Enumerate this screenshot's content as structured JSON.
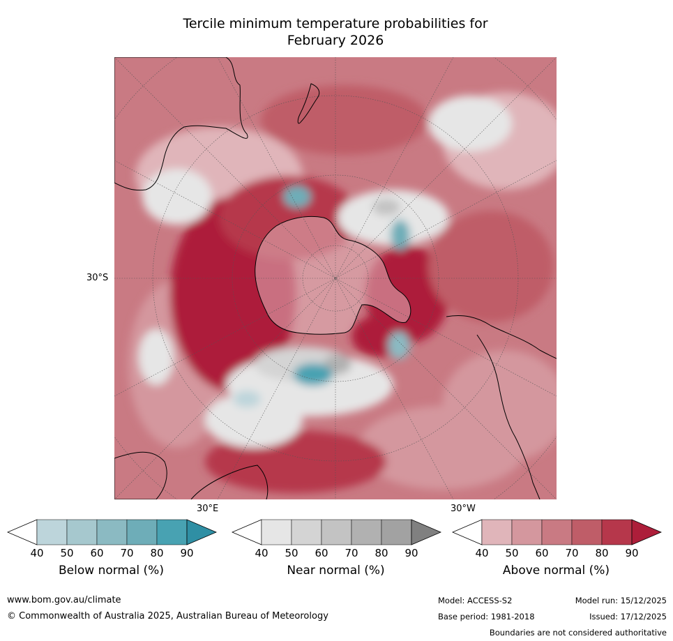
{
  "title": {
    "line1": "Tercile minimum temperature probabilities for",
    "line2": "February 2026"
  },
  "map": {
    "lat_label": "30°S",
    "lon_labels": [
      "30°E",
      "30°W"
    ],
    "palette": {
      "above": [
        "#e0b5ba",
        "#d4979e",
        "#c97a83",
        "#bf5d68",
        "#b6374b",
        "#ad1e3a"
      ],
      "near": [
        "#e6e6e6",
        "#d4d4d4",
        "#c3c3c3",
        "#b1b1b1",
        "#a2a2a2",
        "#808080"
      ],
      "below": [
        "#bdd5db",
        "#a6c8ce",
        "#8bbac2",
        "#6eadb8",
        "#48a2b2",
        "#2f8fa4"
      ]
    }
  },
  "colorbars": [
    {
      "id": "below",
      "title": "Below normal (%)",
      "ticks": [
        "40",
        "50",
        "60",
        "70",
        "80",
        "90"
      ],
      "colors": [
        "#bdd5db",
        "#a6c8ce",
        "#8bbac2",
        "#6eadb8",
        "#48a2b2"
      ],
      "arrow_color": "#2f8fa4"
    },
    {
      "id": "near",
      "title": "Near normal (%)",
      "ticks": [
        "40",
        "50",
        "60",
        "70",
        "80",
        "90"
      ],
      "colors": [
        "#e6e6e6",
        "#d4d4d4",
        "#c3c3c3",
        "#b1b1b1",
        "#a2a2a2"
      ],
      "arrow_color": "#808080"
    },
    {
      "id": "above",
      "title": "Above normal (%)",
      "ticks": [
        "40",
        "50",
        "60",
        "70",
        "80",
        "90"
      ],
      "colors": [
        "#e0b5ba",
        "#d4979e",
        "#c97a83",
        "#bf5d68",
        "#b6374b"
      ],
      "arrow_color": "#ad1e3a"
    }
  ],
  "footer": {
    "website": "www.bom.gov.au/climate",
    "copyright": "© Commonwealth of Australia 2025, Australian Bureau of Meteorology",
    "model": "Model: ACCESS-S2",
    "base_period": "Base period: 1981-2018",
    "model_run": "Model run: 15/12/2025",
    "issued": "Issued: 17/12/2025",
    "disclaimer": "Boundaries are not considered authoritative"
  }
}
